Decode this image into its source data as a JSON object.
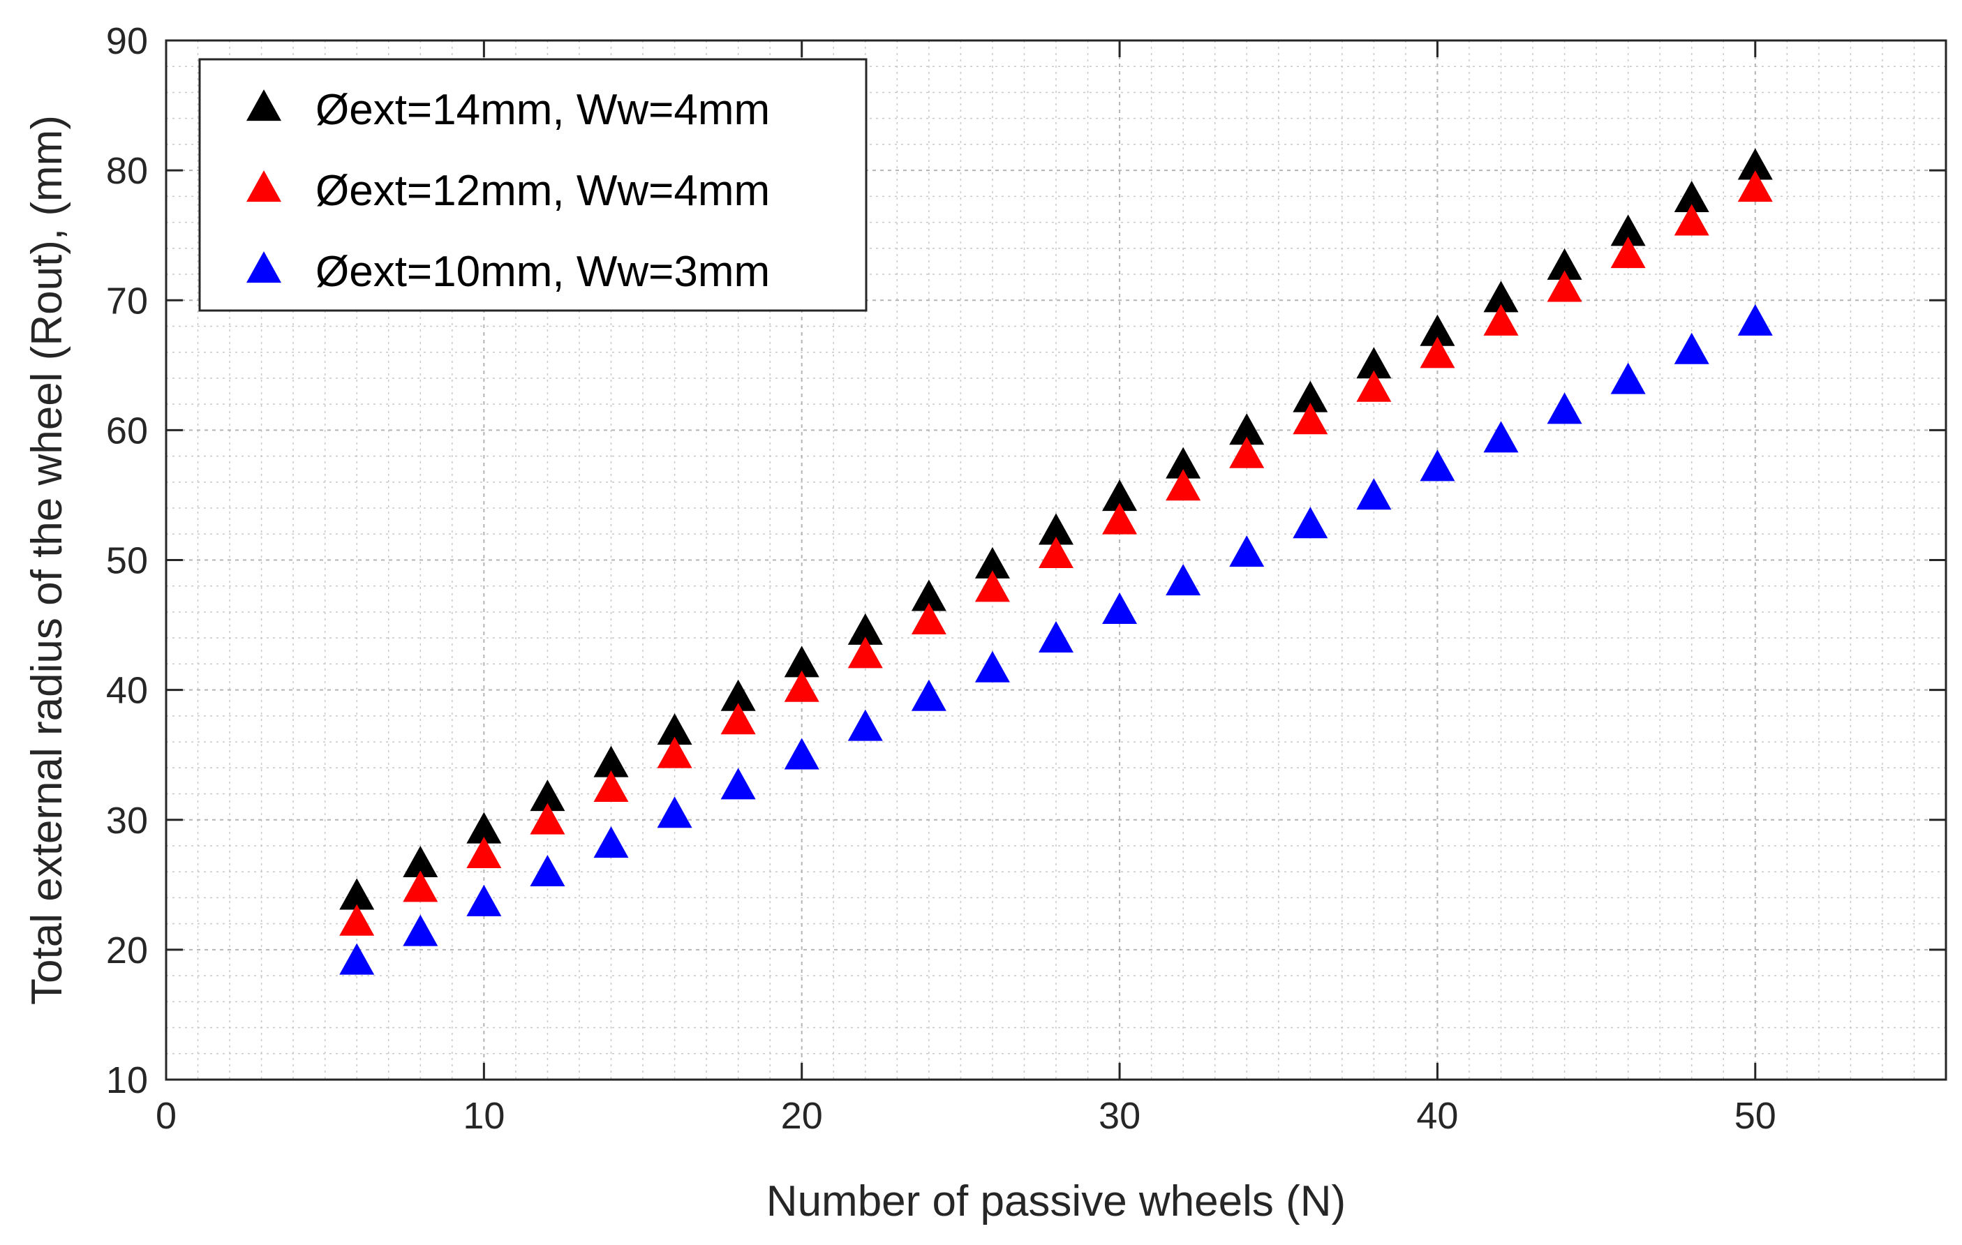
{
  "chart_data": {
    "type": "scatter",
    "title": "",
    "xlabel": "Number of passive wheels (N)",
    "ylabel": "Total external radius of the wheel (Rout), (mm)",
    "xlim": [
      0,
      56
    ],
    "ylim": [
      10,
      90
    ],
    "xticks": [
      0,
      10,
      20,
      30,
      40,
      50
    ],
    "yticks": [
      10,
      20,
      30,
      40,
      50,
      60,
      70,
      80,
      90
    ],
    "x_minor_step": 1,
    "y_minor_step": 2,
    "grid": true,
    "minor_grid": true,
    "legend_position": "top-left",
    "marker": "triangle",
    "x": [
      6,
      8,
      10,
      12,
      14,
      16,
      18,
      20,
      22,
      24,
      26,
      28,
      30,
      32,
      34,
      36,
      38,
      40,
      42,
      44,
      46,
      48,
      50
    ],
    "series": [
      {
        "name": "Øext=14mm, Ww=4mm",
        "color": "#000000",
        "values": [
          24,
          26.5,
          29.1,
          31.6,
          34.2,
          36.7,
          39.3,
          41.9,
          44.4,
          47.0,
          49.5,
          52.1,
          54.7,
          57.2,
          59.8,
          62.3,
          64.9,
          67.4,
          70.0,
          72.5,
          75.1,
          77.7,
          80.2
        ]
      },
      {
        "name": "Øext=12mm, Ww=4mm",
        "color": "#ff0000",
        "values": [
          22,
          24.6,
          27.2,
          29.8,
          32.3,
          34.9,
          37.5,
          40.0,
          42.6,
          45.2,
          47.7,
          50.3,
          52.9,
          55.5,
          58.0,
          60.6,
          63.1,
          65.7,
          68.2,
          70.8,
          73.4,
          75.9,
          78.5
        ]
      },
      {
        "name": "Øext=10mm, Ww=3mm",
        "color": "#0000ff",
        "values": [
          19,
          21.2,
          23.5,
          25.8,
          28.0,
          30.3,
          32.5,
          34.8,
          37.0,
          39.3,
          41.5,
          43.8,
          46.0,
          48.2,
          50.4,
          52.6,
          54.8,
          57.0,
          59.2,
          61.4,
          63.7,
          66.0,
          68.2
        ]
      }
    ]
  }
}
